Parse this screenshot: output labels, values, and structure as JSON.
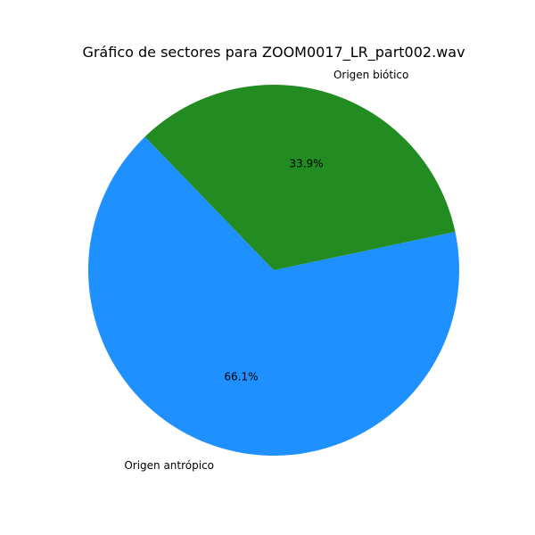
{
  "chart_data": {
    "type": "pie",
    "title": "Gráfico de sectores para ZOOM0017_LR_part002.wav",
    "categories": [
      "Origen antrópico",
      "Origen biótico"
    ],
    "values": [
      66.1,
      33.9
    ],
    "percent_labels": [
      "66.1%",
      "33.9%"
    ],
    "colors": [
      "#1e90ff",
      "#228b22"
    ]
  }
}
